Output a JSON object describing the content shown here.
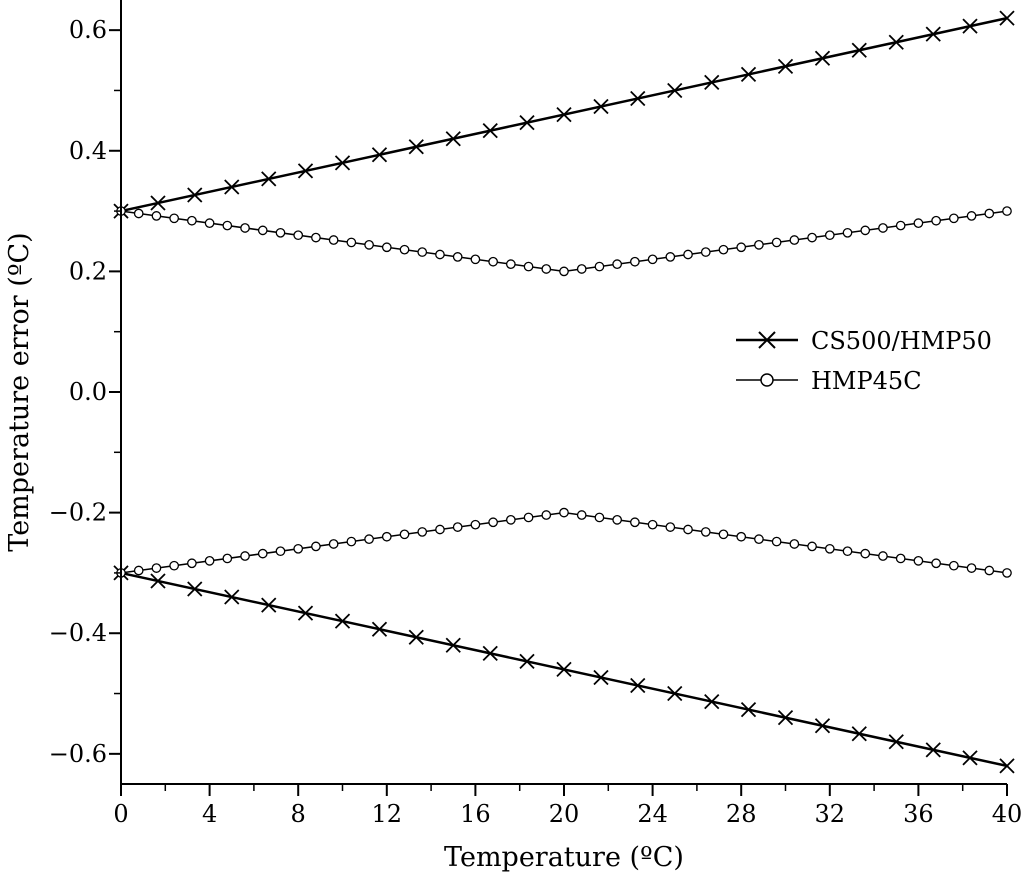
{
  "chart_data": {
    "type": "line",
    "title": "",
    "xlabel": "Temperature (ºC)",
    "ylabel": "Temperature error (ºC)",
    "xlim": [
      0,
      40
    ],
    "ylim": [
      -0.65,
      0.65
    ],
    "xticks": [
      0,
      4,
      8,
      12,
      16,
      20,
      24,
      28,
      32,
      36,
      40
    ],
    "xtick_labels": [
      "0",
      "4",
      "8",
      "12",
      "16",
      "20",
      "24",
      "28",
      "32",
      "36",
      "40"
    ],
    "yticks": [
      -0.6,
      -0.4,
      -0.2,
      0.0,
      0.2,
      0.4,
      0.6
    ],
    "ytick_labels": [
      "−0.6",
      "−0.4",
      "−0.2",
      "0.0",
      "0.2",
      "0.4",
      "0.6"
    ],
    "grid": false,
    "legend_position": "right",
    "series": [
      {
        "name": "CS500/HMP50",
        "marker": "x",
        "lines": [
          {
            "x": [
              0,
              40
            ],
            "y": [
              0.3,
              0.62
            ]
          },
          {
            "x": [
              0,
              40
            ],
            "y": [
              -0.3,
              -0.62
            ]
          }
        ],
        "markers_x": [
          0,
          1.67,
          3.33,
          5,
          6.67,
          8.33,
          10,
          11.67,
          13.33,
          15,
          16.67,
          18.33,
          20,
          21.67,
          23.33,
          25,
          26.67,
          28.33,
          30,
          31.67,
          33.33,
          35,
          36.67,
          38.33,
          40
        ]
      },
      {
        "name": "HMP45C",
        "marker": "o",
        "lines": [
          {
            "x": [
              0,
              20,
              40
            ],
            "y": [
              0.3,
              0.2,
              0.3
            ]
          },
          {
            "x": [
              0,
              20,
              40
            ],
            "y": [
              -0.3,
              -0.2,
              -0.3
            ]
          }
        ],
        "markers_x": [
          0,
          0.8,
          1.6,
          2.4,
          3.2,
          4,
          4.8,
          5.6,
          6.4,
          7.2,
          8,
          8.8,
          9.6,
          10.4,
          11.2,
          12,
          12.8,
          13.6,
          14.4,
          15.2,
          16,
          16.8,
          17.6,
          18.4,
          19.2,
          20,
          20.8,
          21.6,
          22.4,
          23.2,
          24,
          24.8,
          25.6,
          26.4,
          27.2,
          28,
          28.8,
          29.6,
          30.4,
          31.2,
          32,
          32.8,
          33.6,
          34.4,
          35.2,
          36,
          36.8,
          37.6,
          38.4,
          39.2,
          40
        ]
      }
    ]
  }
}
